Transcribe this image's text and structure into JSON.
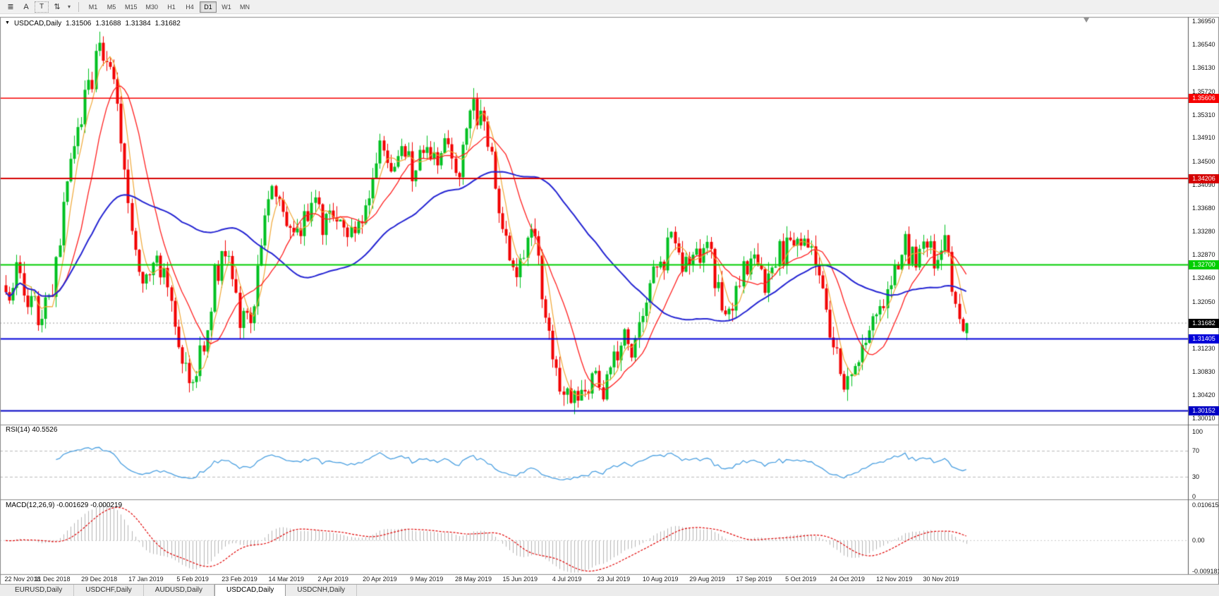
{
  "toolbar": {
    "icons": [
      {
        "name": "chart-list-icon",
        "glyph": "≣"
      },
      {
        "name": "cursor-mode-button",
        "glyph": "A"
      },
      {
        "name": "text-tool-button",
        "glyph": "T",
        "boxed": true
      },
      {
        "name": "arrange-windows-button",
        "glyph": "⇅"
      },
      {
        "name": "dropdown-caret-icon",
        "glyph": "▾",
        "caret": true
      }
    ],
    "timeframes": [
      "M1",
      "M5",
      "M15",
      "M30",
      "H1",
      "H4",
      "D1",
      "W1",
      "MN"
    ],
    "active_timeframe": "D1"
  },
  "chart": {
    "collapse_marker": "▼",
    "symbol": "USDCAD,Daily",
    "open": "1.31506",
    "high": "1.31688",
    "low": "1.31384",
    "close": "1.31682",
    "price_axis": [
      "1.36950",
      "1.36540",
      "1.36130",
      "1.35720",
      "1.35310",
      "1.34910",
      "1.34500",
      "1.34090",
      "1.33680",
      "1.33280",
      "1.32870",
      "1.32460",
      "1.32050",
      "1.31640",
      "1.31230",
      "1.30830",
      "1.30420",
      "1.30010"
    ],
    "levels": [
      {
        "label": "1.35606",
        "value": 1.35606,
        "color": "#f60000",
        "line_width": 1.4
      },
      {
        "label": "1.34206",
        "value": 1.34206,
        "color": "#d40000",
        "line_width": 2
      },
      {
        "label": "1.32700",
        "value": 1.327,
        "color": "#00ce00",
        "line_width": 2
      },
      {
        "label": "1.31405",
        "value": 1.31405,
        "color": "#0000d8",
        "line_width": 2
      },
      {
        "label": "1.30152",
        "value": 1.30152,
        "color": "#0000c4",
        "line_width": 2
      }
    ],
    "current_price": {
      "label": "1.31682",
      "value": 1.31682,
      "badge_color": "#000000"
    }
  },
  "indicators": {
    "rsi": {
      "label": "RSI(14) 40.5526",
      "period": 14,
      "current": 40.5526,
      "levels": [
        70,
        30
      ],
      "color": "#4a9fe0",
      "axis": [
        {
          "text": "100",
          "value": 100
        },
        {
          "text": "70",
          "value": 70
        },
        {
          "text": "30",
          "value": 30
        },
        {
          "text": "0",
          "value": 0
        }
      ]
    },
    "macd": {
      "label": "MACD(12,26,9) -0.001629 -0.000219",
      "params": [
        12,
        26,
        9
      ],
      "main_value": -0.001629,
      "signal_value": -0.000219,
      "hist_color": "#b4b4b4",
      "signal_color": "#e00000",
      "axis": [
        {
          "text": "0.010615",
          "value": 0.010615
        },
        {
          "text": "0.00",
          "value": 0
        },
        {
          "text": "-0.009181",
          "value": -0.009181
        }
      ]
    }
  },
  "dates": [
    "22 Nov 2018",
    "11 Dec 2018",
    "29 Dec 2018",
    "17 Jan 2019",
    "5 Feb 2019",
    "23 Feb 2019",
    "14 Mar 2019",
    "2 Apr 2019",
    "20 Apr 2019",
    "9 May 2019",
    "28 May 2019",
    "15 Jun 2019",
    "4 Jul 2019",
    "23 Jul 2019",
    "10 Aug 2019",
    "29 Aug 2019",
    "17 Sep 2019",
    "5 Oct 2019",
    "24 Oct 2019",
    "12 Nov 2019",
    "30 Nov 2019"
  ],
  "tabs": {
    "items": [
      "EURUSD,Daily",
      "USDCHF,Daily",
      "AUDUSD,Daily",
      "USDCAD,Daily",
      "USDCNH,Daily"
    ],
    "active_index": 3
  },
  "chart_data": {
    "type": "candlestick",
    "symbol": "USDCAD",
    "timeframe": "Daily",
    "bar_count": 268,
    "bars_per_label": 13,
    "y_range": {
      "min": 1.2996,
      "max": 1.37
    },
    "last_bar": {
      "open": 1.31506,
      "high": 1.31688,
      "low": 1.31384,
      "close": 1.31682
    },
    "up_color": "#00c020",
    "down_color": "#f20000",
    "moving_averages": [
      {
        "period": 5,
        "color": "#f0a735",
        "width": 1.2
      },
      {
        "period": 13,
        "color": "#ff1f1f",
        "width": 1.3
      },
      {
        "period": 50,
        "color": "#2424d2",
        "width": 2
      }
    ],
    "shift_marker_x": 1540,
    "close_anchors": [
      [
        0,
        1.3205
      ],
      [
        3,
        1.3265
      ],
      [
        6,
        1.3215
      ],
      [
        10,
        1.3175
      ],
      [
        13,
        1.3215
      ],
      [
        18,
        1.345
      ],
      [
        22,
        1.356
      ],
      [
        26,
        1.364
      ],
      [
        29,
        1.362
      ],
      [
        31,
        1.356
      ],
      [
        33,
        1.344
      ],
      [
        35,
        1.333
      ],
      [
        37,
        1.326
      ],
      [
        39,
        1.324
      ],
      [
        42,
        1.329
      ],
      [
        45,
        1.322
      ],
      [
        48,
        1.312
      ],
      [
        52,
        1.3075
      ],
      [
        55,
        1.313
      ],
      [
        58,
        1.325
      ],
      [
        61,
        1.33
      ],
      [
        65,
        1.318
      ],
      [
        68,
        1.316
      ],
      [
        71,
        1.329
      ],
      [
        74,
        1.342
      ],
      [
        78,
        1.334
      ],
      [
        82,
        1.332
      ],
      [
        85,
        1.338
      ],
      [
        88,
        1.334
      ],
      [
        91,
        1.3355
      ],
      [
        94,
        1.332
      ],
      [
        97,
        1.334
      ],
      [
        100,
        1.338
      ],
      [
        104,
        1.348
      ],
      [
        107,
        1.344
      ],
      [
        110,
        1.347
      ],
      [
        113,
        1.343
      ],
      [
        117,
        1.347
      ],
      [
        120,
        1.345
      ],
      [
        123,
        1.348
      ],
      [
        126,
        1.343
      ],
      [
        130,
        1.3545
      ],
      [
        133,
        1.35
      ],
      [
        136,
        1.342
      ],
      [
        139,
        1.33
      ],
      [
        143,
        1.326
      ],
      [
        146,
        1.333
      ],
      [
        149,
        1.323
      ],
      [
        152,
        1.31
      ],
      [
        156,
        1.3045
      ],
      [
        158,
        1.306
      ],
      [
        160,
        1.3035
      ],
      [
        163,
        1.308
      ],
      [
        166,
        1.304
      ],
      [
        169,
        1.311
      ],
      [
        172,
        1.315
      ],
      [
        175,
        1.312
      ],
      [
        178,
        1.322
      ],
      [
        182,
        1.327
      ],
      [
        185,
        1.331
      ],
      [
        188,
        1.326
      ],
      [
        191,
        1.328
      ],
      [
        195,
        1.33
      ],
      [
        198,
        1.323
      ],
      [
        201,
        1.318
      ],
      [
        204,
        1.325
      ],
      [
        208,
        1.328
      ],
      [
        211,
        1.324
      ],
      [
        214,
        1.328
      ],
      [
        217,
        1.33
      ],
      [
        221,
        1.329
      ],
      [
        224,
        1.331
      ],
      [
        227,
        1.324
      ],
      [
        230,
        1.312
      ],
      [
        234,
        1.306
      ],
      [
        237,
        1.309
      ],
      [
        240,
        1.315
      ],
      [
        243,
        1.32
      ],
      [
        247,
        1.327
      ],
      [
        250,
        1.33
      ],
      [
        253,
        1.327
      ],
      [
        256,
        1.33
      ],
      [
        259,
        1.328
      ],
      [
        261,
        1.33
      ],
      [
        263,
        1.324
      ],
      [
        265,
        1.318
      ],
      [
        267,
        1.31682
      ]
    ]
  }
}
